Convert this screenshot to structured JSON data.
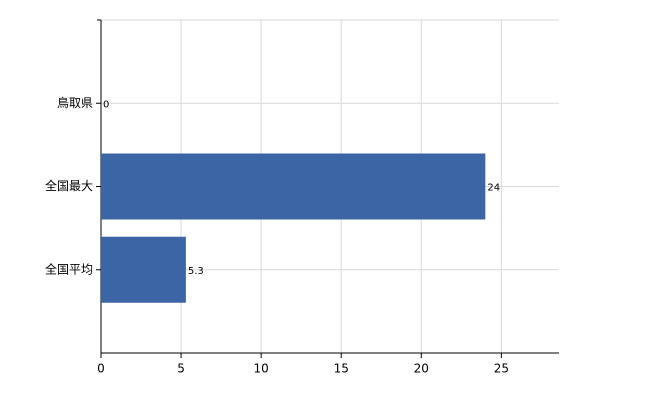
{
  "chart_data": {
    "type": "hbar",
    "categories": [
      "鳥取県",
      "全国最大",
      "全国平均"
    ],
    "values": [
      0,
      24,
      5.3
    ],
    "color": "#3b65a4",
    "xlim": [
      0,
      28.6
    ],
    "xticks": [
      0,
      5,
      10,
      15,
      20,
      25
    ],
    "grid": true
  }
}
